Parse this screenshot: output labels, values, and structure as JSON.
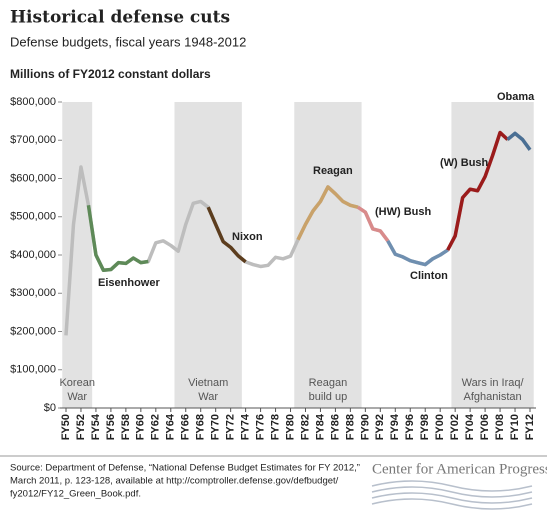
{
  "chart_data": {
    "type": "line",
    "title": "Historical defense cuts",
    "subtitle": "Defense budgets, fiscal years 1948-2012",
    "y_label": "Millions of FY2012 constant dollars",
    "x": [
      1950,
      1951,
      1952,
      1953,
      1954,
      1955,
      1956,
      1957,
      1958,
      1959,
      1960,
      1961,
      1962,
      1963,
      1964,
      1965,
      1966,
      1967,
      1968,
      1969,
      1970,
      1971,
      1972,
      1973,
      1974,
      1975,
      1976,
      1977,
      1978,
      1979,
      1980,
      1981,
      1982,
      1983,
      1984,
      1985,
      1986,
      1987,
      1988,
      1989,
      1990,
      1991,
      1992,
      1993,
      1994,
      1995,
      1996,
      1997,
      1998,
      1999,
      2000,
      2001,
      2002,
      2003,
      2004,
      2005,
      2006,
      2007,
      2008,
      2009,
      2010,
      2011,
      2012
    ],
    "values": [
      190000,
      480000,
      630000,
      530000,
      400000,
      360000,
      362000,
      380000,
      378000,
      392000,
      380000,
      383000,
      432000,
      437000,
      425000,
      410000,
      480000,
      535000,
      540000,
      525000,
      480000,
      435000,
      420000,
      398000,
      382000,
      375000,
      370000,
      373000,
      394000,
      390000,
      397000,
      440000,
      480000,
      515000,
      540000,
      578000,
      560000,
      540000,
      530000,
      525000,
      512000,
      468000,
      463000,
      437000,
      402000,
      395000,
      385000,
      380000,
      375000,
      390000,
      400000,
      413000,
      450000,
      550000,
      572000,
      568000,
      605000,
      660000,
      720000,
      702000,
      718000,
      702000,
      675000
    ],
    "color": "#bdbdbd",
    "segments": [
      {
        "name": "Eisenhower",
        "color": "#5e8a58",
        "from": 1953,
        "to": 1961
      },
      {
        "name": "Nixon",
        "color": "#5c3d1e",
        "from": 1969,
        "to": 1974
      },
      {
        "name": "Reagan",
        "color": "#c9a26a",
        "from": 1981,
        "to": 1989
      },
      {
        "name": "(HW) Bush",
        "color": "#d98b8b",
        "from": 1989,
        "to": 1993
      },
      {
        "name": "Clinton",
        "color": "#6f8fb0",
        "from": 1993,
        "to": 2001
      },
      {
        "name": "(W) Bush",
        "color": "#9b1b1b",
        "from": 2001,
        "to": 2009
      },
      {
        "name": "Obama",
        "color": "#4a6f94",
        "from": 2009,
        "to": 2012
      }
    ],
    "bands": [
      {
        "label": [
          "Korean",
          "War"
        ],
        "from": 1950,
        "to": 1953
      },
      {
        "label": [
          "Vietnam",
          "War"
        ],
        "from": 1965,
        "to": 1973
      },
      {
        "label": [
          "Reagan",
          "build up"
        ],
        "from": 1981,
        "to": 1989
      },
      {
        "label": [
          "Wars in Iraq/",
          "Afghanistan"
        ],
        "from": 2002,
        "to": 2012
      }
    ],
    "xlim": [
      1950,
      2012
    ],
    "xticks": [
      {
        "value": 1950,
        "label": "FY50"
      },
      {
        "value": 1952,
        "label": "FY52"
      },
      {
        "value": 1954,
        "label": "FY54"
      },
      {
        "value": 1956,
        "label": "FY56"
      },
      {
        "value": 1958,
        "label": "FY58"
      },
      {
        "value": 1960,
        "label": "FY60"
      },
      {
        "value": 1962,
        "label": "FY62"
      },
      {
        "value": 1964,
        "label": "FY64"
      },
      {
        "value": 1966,
        "label": "FY66"
      },
      {
        "value": 1968,
        "label": "FY68"
      },
      {
        "value": 1970,
        "label": "FY70"
      },
      {
        "value": 1972,
        "label": "FY72"
      },
      {
        "value": 1974,
        "label": "FY74"
      },
      {
        "value": 1976,
        "label": "FY76"
      },
      {
        "value": 1978,
        "label": "FY78"
      },
      {
        "value": 1980,
        "label": "FY80"
      },
      {
        "value": 1982,
        "label": "FY82"
      },
      {
        "value": 1984,
        "label": "FY84"
      },
      {
        "value": 1986,
        "label": "FY86"
      },
      {
        "value": 1988,
        "label": "FY88"
      },
      {
        "value": 1990,
        "label": "FY90"
      },
      {
        "value": 1992,
        "label": "FY92"
      },
      {
        "value": 1994,
        "label": "FY94"
      },
      {
        "value": 1996,
        "label": "FY96"
      },
      {
        "value": 1998,
        "label": "FY98"
      },
      {
        "value": 2000,
        "label": "FY00"
      },
      {
        "value": 2002,
        "label": "FY02"
      },
      {
        "value": 2004,
        "label": "FY04"
      },
      {
        "value": 2006,
        "label": "FY06"
      },
      {
        "value": 2008,
        "label": "FY08"
      },
      {
        "value": 2010,
        "label": "FY10"
      },
      {
        "value": 2012,
        "label": "FY12"
      }
    ],
    "ylim": [
      0,
      800000
    ],
    "yticks": [
      {
        "value": 0,
        "label": "$0"
      },
      {
        "value": 100000,
        "label": "$100,000"
      },
      {
        "value": 200000,
        "label": "$200,000"
      },
      {
        "value": 300000,
        "label": "$300,000"
      },
      {
        "value": 400000,
        "label": "$400,000"
      },
      {
        "value": 500000,
        "label": "$500,000"
      },
      {
        "value": 600000,
        "label": "$600,000"
      },
      {
        "value": 700000,
        "label": "$700,000"
      },
      {
        "value": 800000,
        "label": "$800,000"
      }
    ]
  },
  "footer": {
    "source": [
      "Source: Department of Defense, “National Defense Budget Estimates for FY 2012,”",
      "March 2011, p. 123-128, available at http://comptroller.defense.gov/defbudget/",
      "fy2012/FY12_Green_Book.pdf."
    ],
    "logo": "Center for American Progress"
  }
}
